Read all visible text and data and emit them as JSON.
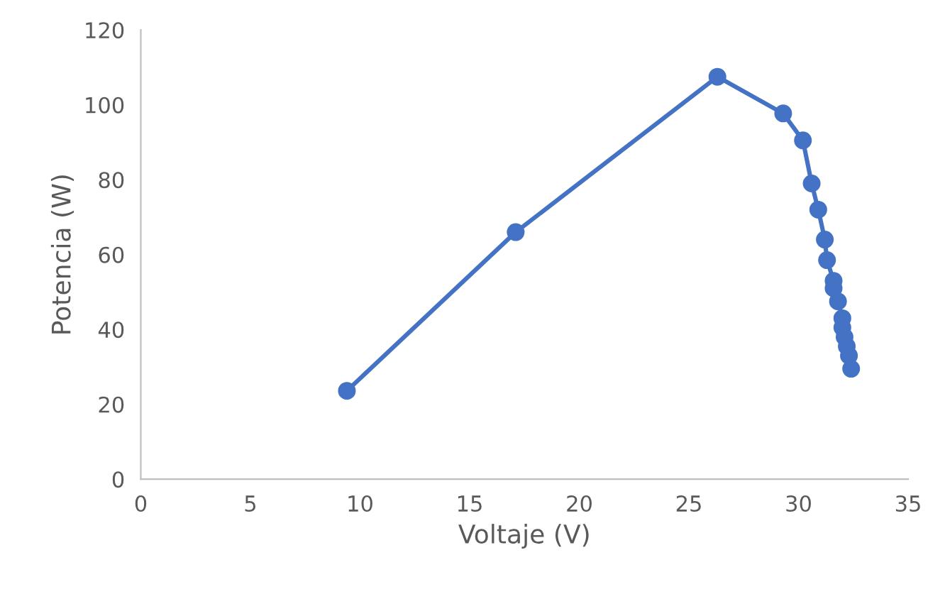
{
  "chart_data": {
    "type": "line",
    "xlabel": "Voltaje (V)",
    "ylabel": "Potencia (W)",
    "series": [
      {
        "color": "#4472c4",
        "marker": "circle",
        "line_style": "solid",
        "x": [
          9.4,
          17.1,
          26.3,
          29.3,
          30.2,
          30.6,
          30.9,
          31.2,
          31.3,
          31.6,
          31.6,
          31.8,
          32.0,
          32.0,
          32.1,
          32.2,
          32.3,
          32.4
        ],
        "values": [
          23.6,
          66,
          107.5,
          97.7,
          90.5,
          79,
          72,
          64,
          58.5,
          53,
          51,
          47.5,
          43,
          40.5,
          38,
          35.5,
          33,
          29.5
        ]
      }
    ],
    "xlim": [
      0,
      35
    ],
    "xticks": [
      0,
      5,
      10,
      15,
      20,
      25,
      30,
      35
    ],
    "ylim": [
      0,
      120
    ],
    "yticks": [
      0,
      20,
      40,
      60,
      80,
      100,
      120
    ],
    "grid": false,
    "legend": false
  }
}
